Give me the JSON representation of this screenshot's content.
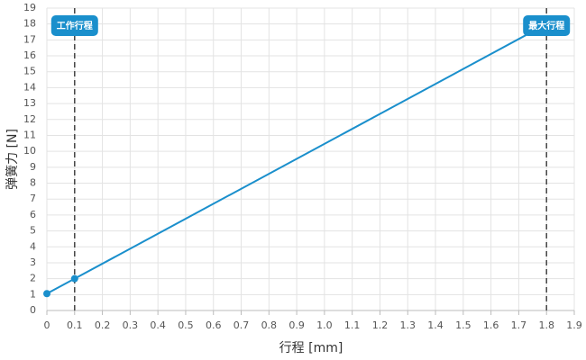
{
  "chart_data": {
    "type": "line",
    "x_label": "行程 [mm]",
    "y_label": "弹簧力 [N]",
    "x": [
      0,
      0.1,
      1.8
    ],
    "series": [
      {
        "color": "#1a8fcc",
        "values": [
          1.06,
          2,
          18
        ]
      }
    ],
    "xlim": [
      0,
      1.9
    ],
    "ylim": [
      0,
      19
    ],
    "xticks": [
      0,
      0.1,
      0.2,
      0.3,
      0.4,
      0.5,
      0.6,
      0.7,
      0.8,
      0.9,
      {
        "value": 1,
        "label": "1.0"
      },
      1.1,
      1.2,
      1.3,
      1.4,
      1.5,
      1.6,
      1.7,
      1.8,
      1.9
    ],
    "yticks": [
      0,
      1,
      2,
      3,
      4,
      5,
      6,
      7,
      8,
      9,
      10,
      11,
      12,
      13,
      14,
      15,
      16,
      17,
      18,
      19
    ],
    "grid": true,
    "annotations": [
      {
        "x": 0.1,
        "label": "工作行程",
        "color": "#1a8fcc"
      },
      {
        "x": 1.8,
        "label": "最大行程",
        "color": "#1a8fcc"
      }
    ]
  }
}
